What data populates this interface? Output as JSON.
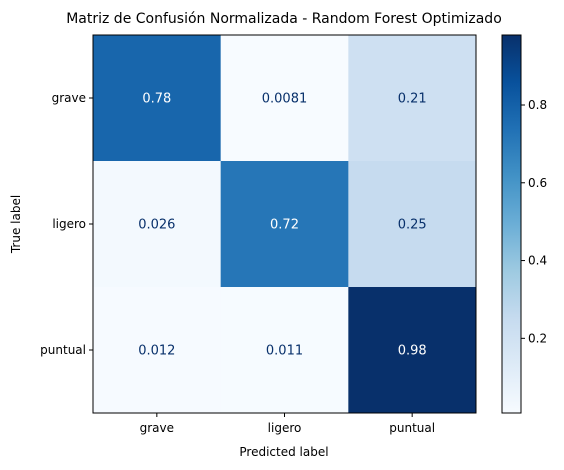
{
  "chart_data": {
    "type": "heatmap",
    "title": "Matriz de Confusión Normalizada - Random Forest Optimizado",
    "xlabel": "Predicted label",
    "ylabel": "True label",
    "x_categories": [
      "grave",
      "ligero",
      "puntual"
    ],
    "y_categories": [
      "grave",
      "ligero",
      "puntual"
    ],
    "values": [
      [
        0.78,
        0.0081,
        0.21
      ],
      [
        0.026,
        0.72,
        0.25
      ],
      [
        0.012,
        0.011,
        0.98
      ]
    ],
    "cell_labels": [
      [
        "0.78",
        "0.0081",
        "0.21"
      ],
      [
        "0.026",
        "0.72",
        "0.25"
      ],
      [
        "0.012",
        "0.011",
        "0.98"
      ]
    ],
    "colormap": "Blues",
    "color_range": [
      0.008,
      0.98
    ],
    "colorbar_ticks": [
      0.2,
      0.4,
      0.6,
      0.8
    ],
    "colorbar_tick_labels": [
      "0.2",
      "0.4",
      "0.6",
      "0.8"
    ]
  }
}
